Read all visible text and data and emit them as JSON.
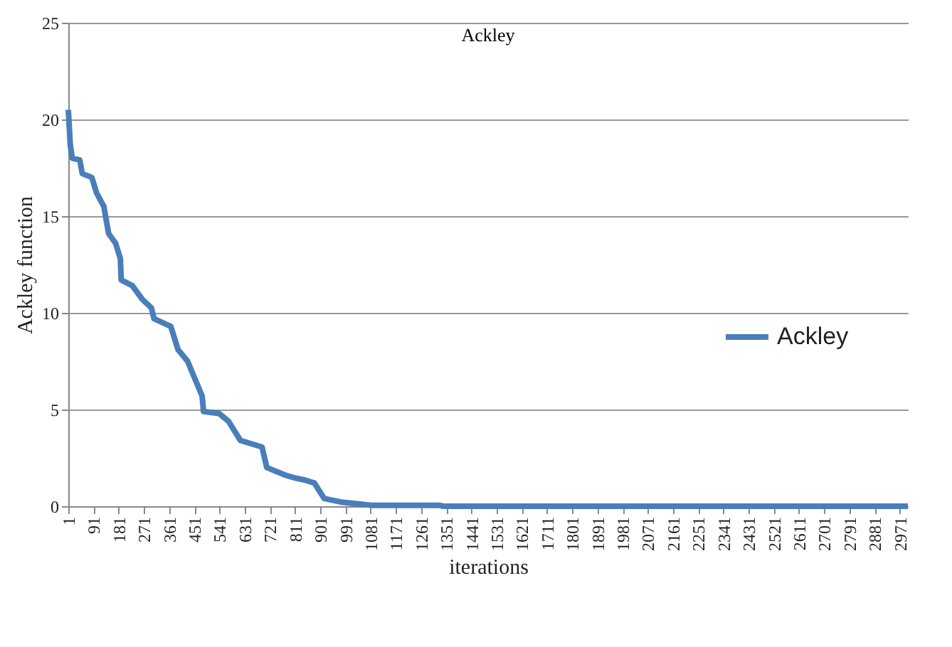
{
  "chart_data": {
    "type": "line",
    "title": "Ackley",
    "xlabel": "iterations",
    "ylabel": "Ackley function",
    "x": [
      1,
      8,
      15,
      42,
      51,
      85,
      102,
      128,
      145,
      170,
      187,
      190,
      230,
      265,
      298,
      307,
      367,
      393,
      427,
      453,
      479,
      484,
      539,
      573,
      616,
      693,
      710,
      778,
      812,
      847,
      880,
      915,
      982,
      1085,
      1326,
      1341,
      3000
    ],
    "series": [
      {
        "name": "Ackley",
        "color": "#4a7ebb",
        "values": [
          20.5,
          18.7,
          18.0,
          17.9,
          17.2,
          17.0,
          16.2,
          15.5,
          14.1,
          13.6,
          12.8,
          11.7,
          11.4,
          10.7,
          10.25,
          9.7,
          9.3,
          8.1,
          7.5,
          6.6,
          5.7,
          4.9,
          4.8,
          4.4,
          3.4,
          3.06,
          2.0,
          1.6,
          1.46,
          1.35,
          1.2,
          0.4,
          0.2,
          0.05,
          0.05,
          0,
          0
        ]
      }
    ],
    "xlim": [
      1,
      3000
    ],
    "xticks": [
      1,
      91,
      181,
      271,
      361,
      451,
      541,
      631,
      721,
      811,
      901,
      991,
      1081,
      1171,
      1261,
      1351,
      1441,
      1531,
      1621,
      1711,
      1801,
      1891,
      1981,
      2071,
      2161,
      2251,
      2341,
      2431,
      2521,
      2611,
      2701,
      2791,
      2881,
      2971
    ],
    "ylim": [
      0,
      25
    ],
    "yticks": [
      0,
      5,
      10,
      15,
      20,
      25
    ],
    "grid": "y",
    "legend": "right",
    "line_style": "solid",
    "marker": "none"
  }
}
